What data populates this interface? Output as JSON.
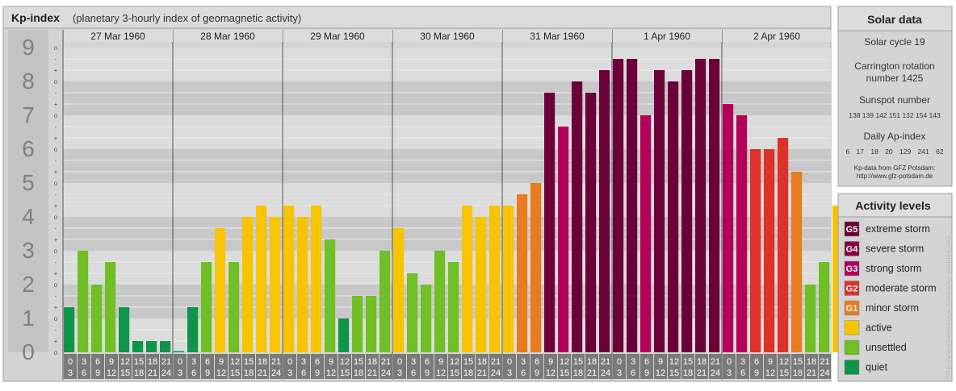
{
  "header": {
    "title": "Kp-index",
    "subtitle": "(planetary 3-hourly index of geomagnetic activity)"
  },
  "chart_data": {
    "type": "bar",
    "title": "Kp-index",
    "subtitle": "(planetary 3-hourly index of geomagnetic activity)",
    "ylim": [
      0,
      9
    ],
    "y_ticks": [
      "0",
      "1",
      "2",
      "3",
      "4",
      "5",
      "6",
      "7",
      "8",
      "9"
    ],
    "y_minor_ticks": [
      "o",
      "+",
      "-"
    ],
    "grid": true,
    "days": [
      "27 Mar 1960",
      "28 Mar 1960",
      "29 Mar 1960",
      "30 Mar 1960",
      "31 Mar 1960",
      "1 Apr 1960",
      "2 Apr 1960"
    ],
    "interval_starts": [
      "0",
      "3",
      "6",
      "9",
      "12",
      "15",
      "18",
      "21"
    ],
    "interval_ends": [
      "3",
      "6",
      "9",
      "12",
      "15",
      "18",
      "21",
      "24"
    ],
    "values": [
      [
        1.333,
        3.0,
        2.0,
        2.667,
        1.333,
        0.333,
        0.333,
        0.333
      ],
      [
        0.0,
        1.333,
        2.667,
        3.667,
        2.667,
        4.0,
        4.333,
        4.0
      ],
      [
        4.333,
        4.0,
        4.333,
        3.333,
        1.0,
        1.667,
        1.667,
        3.0
      ],
      [
        3.667,
        2.333,
        2.0,
        3.0,
        2.667,
        4.333,
        4.0,
        4.333
      ],
      [
        4.333,
        4.667,
        5.0,
        7.667,
        6.667,
        8.0,
        7.667,
        8.333
      ],
      [
        8.667,
        8.667,
        7.0,
        8.333,
        8.0,
        8.333,
        8.667,
        8.667
      ],
      [
        7.333,
        7.0,
        6.0,
        6.0,
        6.333,
        5.333,
        2.0,
        2.667
      ]
    ],
    "tail_value": 4.333,
    "levels": [
      {
        "max": 1.5,
        "color": "#0e9549"
      },
      {
        "max": 3.5,
        "color": "#70bf24"
      },
      {
        "max": 4.5,
        "color": "#f8c300"
      },
      {
        "max": 5.5,
        "color": "#e87c1e"
      },
      {
        "max": 6.5,
        "color": "#dc3228"
      },
      {
        "max": 7.5,
        "color": "#b4005b"
      },
      {
        "max": 9.5,
        "color": "#6c0039"
      }
    ]
  },
  "solar": {
    "title": "Solar data",
    "cycle": "Solar cycle 19",
    "carrington_line1": "Carrington rotation",
    "carrington_line2": "number 1425",
    "sunspot_title": "Sunspot number",
    "sunspot_values": "138 139 142 151 132 154 143",
    "ap_title": "Daily Ap-index",
    "ap_values": "6 17 18 20 129 241 62",
    "source_line1": "Kp-data from GFZ Potsdam:",
    "source_line2": "http://www.gfz-potsdam.de"
  },
  "activity": {
    "title": "Activity levels",
    "levels": [
      {
        "badge": "G5",
        "label": "extreme storm",
        "color": "#6c0039"
      },
      {
        "badge": "G4",
        "label": "severe storm",
        "color": "#88003f"
      },
      {
        "badge": "G3",
        "label": "strong storm",
        "color": "#b4005b"
      },
      {
        "badge": "G2",
        "label": "moderate storm",
        "color": "#dc3228"
      },
      {
        "badge": "G1",
        "label": "minor storm",
        "color": "#e87c1e"
      },
      {
        "badge": "",
        "label": "active",
        "color": "#f8c300"
      },
      {
        "badge": "",
        "label": "unsettled",
        "color": "#70bf24"
      },
      {
        "badge": "",
        "label": "quiet",
        "color": "#0e9549"
      }
    ]
  },
  "watermark": "http://www.tiedemaja.fi/data/kp_archive.php"
}
